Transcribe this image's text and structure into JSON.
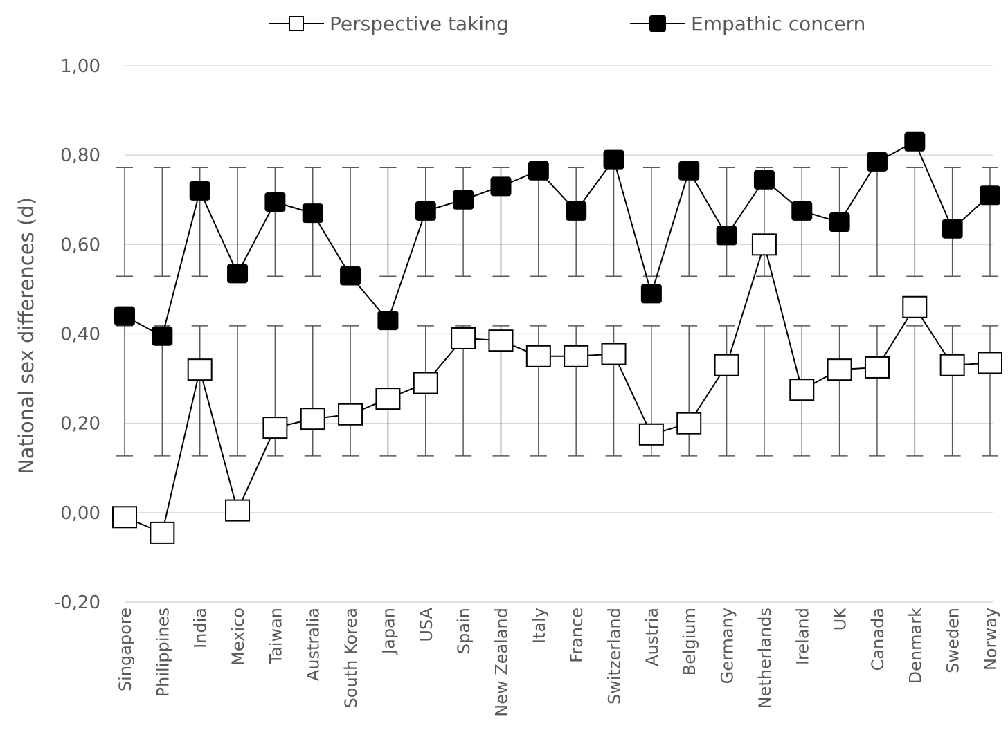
{
  "chart_data": {
    "type": "line",
    "title": "",
    "xlabel": "",
    "ylabel": "National sex differences (d)",
    "ylim": [
      -0.2,
      1.0
    ],
    "yticks": [
      -0.2,
      0.0,
      0.2,
      0.4,
      0.6,
      0.8,
      1.0
    ],
    "ytick_labels": [
      "-0,20",
      "0,00",
      "0,20",
      "0,40",
      "0,60",
      "0,80",
      "1,00"
    ],
    "grid": true,
    "legend_position": "top",
    "categories": [
      "Singapore",
      "Philippines",
      "India",
      "Mexico",
      "Taiwan",
      "Australia",
      "South Korea",
      "Japan",
      "USA",
      "Spain",
      "New Zealand",
      "Italy",
      "France",
      "Switzerland",
      "Austria",
      "Belgium",
      "Germany",
      "Netherlands",
      "Ireland",
      "UK",
      "Canada",
      "Denmark",
      "Sweden",
      "Norway"
    ],
    "series": [
      {
        "name": "Perspective taking",
        "marker": "open-square",
        "values": [
          -0.01,
          -0.045,
          0.32,
          0.005,
          0.19,
          0.21,
          0.22,
          0.255,
          0.29,
          0.39,
          0.385,
          0.35,
          0.35,
          0.355,
          0.175,
          0.2,
          0.33,
          0.6,
          0.275,
          0.32,
          0.325,
          0.46,
          0.33,
          0.335
        ],
        "error_range": [
          0.127,
          0.418
        ]
      },
      {
        "name": "Empathic concern",
        "marker": "filled-square",
        "values": [
          0.44,
          0.395,
          0.72,
          0.535,
          0.695,
          0.67,
          0.53,
          0.43,
          0.675,
          0.7,
          0.73,
          0.765,
          0.675,
          0.79,
          0.49,
          0.765,
          0.62,
          0.745,
          0.675,
          0.65,
          0.785,
          0.83,
          0.635,
          0.71
        ],
        "error_range": [
          0.529,
          0.772
        ]
      }
    ]
  }
}
